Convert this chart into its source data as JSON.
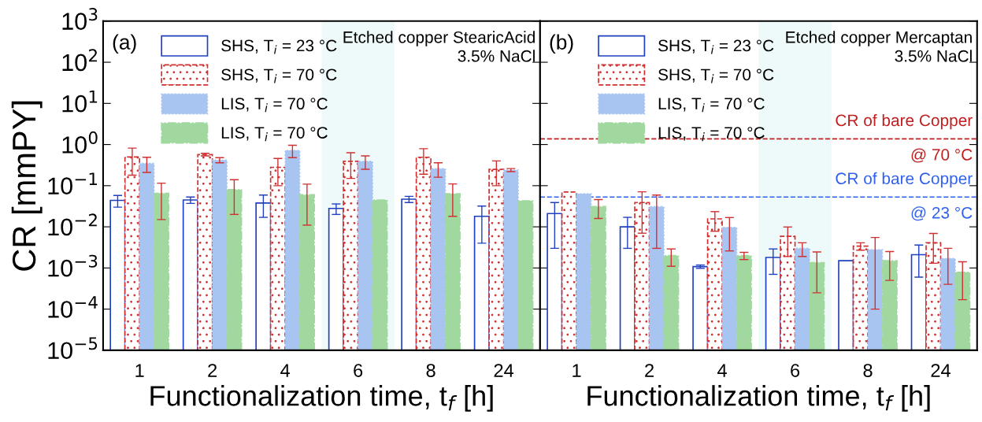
{
  "chart_data": [
    {
      "type": "bar",
      "ylabel": "CR [mmPY]",
      "xlabel": "Functionalization time, t$_{f}$ [h]",
      "log": "y",
      "legend": "top left",
      "grid": false,
      "categories": [
        "1",
        "2",
        "4",
        "6",
        "8",
        "24"
      ],
      "ylim": [
        1e-05,
        1000
      ],
      "yticks": [
        {
          "value": 1e-05,
          "label": "10$^{−5}$"
        },
        {
          "value": 0.0001,
          "label": "10$^{−4}$"
        },
        {
          "value": 0.001,
          "label": "10$^{−3}$"
        },
        {
          "value": 0.01,
          "label": "10$^{−2}$"
        },
        {
          "value": 0.1,
          "label": "10$^{−1}$"
        },
        {
          "value": 1,
          "label": "10$^{0}$"
        },
        {
          "value": 10,
          "label": "10$^{1}$"
        },
        {
          "value": 100,
          "label": "10$^{2}$"
        },
        {
          "value": 1000,
          "label": "10$^{3}$"
        }
      ],
      "annotations": [
        "(a)",
        "Etched copper StearicAcid\n3.5% NaCl"
      ],
      "bands": [
        {
          "axis": "x",
          "from": "6",
          "to": "6",
          "color": "#eefafa"
        }
      ],
      "series": [
        {
          "name": "SHS, T$_{i}$ = 23 °C",
          "color": "#2040c0",
          "values": [
            0.044,
            0.045,
            0.038,
            0.028,
            0.047,
            0.018
          ],
          "errors": [
            0.014,
            0.008,
            0.021,
            0.008,
            0.008,
            0.014
          ]
        },
        {
          "name": "SHS, T$_{i}$ = 70 °C",
          "color": "#d03030",
          "values": [
            0.5,
            0.57,
            0.28,
            0.39,
            0.49,
            0.25
          ],
          "errors": [
            0.32,
            0.04,
            0.18,
            0.24,
            0.3,
            0.15
          ]
        },
        {
          "name": "LIS, T$_{i}$ = 70 °C",
          "color": "#a8c4f0",
          "values": [
            0.35,
            0.42,
            0.72,
            0.39,
            0.26,
            0.24
          ],
          "errors": [
            0.14,
            0.06,
            0.24,
            0.14,
            0.1,
            0.02
          ]
        },
        {
          "name": "LIS, T$_{i}$ = 70 °C",
          "color": "#a0d8a0",
          "values": [
            0.065,
            0.08,
            0.06,
            0.045,
            0.064,
            0.043
          ],
          "errors": [
            0.05,
            0.06,
            0.049,
            null,
            0.046,
            null
          ]
        }
      ]
    },
    {
      "type": "bar",
      "xlabel": "Functionalization time, t$_{f}$ [h]",
      "log": "y",
      "legend": "top left",
      "grid": false,
      "tick_labels": "x",
      "categories": [
        "1",
        "2",
        "4",
        "6",
        "8",
        "24"
      ],
      "ylim": [
        1e-05,
        1000
      ],
      "yticks": [
        {
          "value": 1e-05,
          "label": null
        },
        {
          "value": 0.0001,
          "label": null
        },
        {
          "value": 0.001,
          "label": null
        },
        {
          "value": 0.01,
          "label": null
        },
        {
          "value": 0.1,
          "label": null
        },
        {
          "value": 1,
          "label": null
        },
        {
          "value": 10,
          "label": null
        },
        {
          "value": 100,
          "label": null
        },
        {
          "value": 1000,
          "label": null
        }
      ],
      "annotations": [
        "(b)",
        "Etched copper Mercaptan\n3.5% NaCl"
      ],
      "bands": [
        {
          "axis": "x",
          "from": "6",
          "to": "6",
          "color": "#eefafa"
        }
      ],
      "ref_lines": [
        {
          "axis": "y",
          "value": 1.37,
          "label": "CR of bare Copper\n@ 70 °C",
          "color": "#c02020",
          "line_style": "dashed"
        },
        {
          "axis": "y",
          "value": 0.053,
          "label": "CR of bare Copper\n@ 23 °C",
          "color": "#3060f0",
          "line_style": "dashed"
        }
      ],
      "series": [
        {
          "name": "SHS, T$_{i}$ = 23 °C",
          "color": "#2040c0",
          "values": [
            0.021,
            0.01,
            0.00108,
            0.0018,
            0.0015,
            0.0021
          ],
          "errors": [
            0.018,
            0.007,
            0.0001,
            0.0011,
            null,
            0.0015
          ]
        },
        {
          "name": "SHS, T$_{i}$ = 70 °C",
          "color": "#d03030",
          "values": [
            0.07,
            0.039,
            0.0156,
            0.0059,
            0.0034,
            0.0041
          ],
          "errors": [
            null,
            0.032,
            0.0078,
            0.004,
            0.0007,
            0.0028
          ]
        },
        {
          "name": "LIS, T$_{i}$ = 70 °C",
          "color": "#a8c4f0",
          "values": [
            0.064,
            0.031,
            0.0097,
            0.003,
            0.0028,
            0.0017
          ],
          "errors": [
            null,
            0.028,
            0.0071,
            0.0011,
            0.0027,
            0.0013
          ]
        },
        {
          "name": "LIS, T$_{i}$ = 70 °C",
          "color": "#a0d8a0",
          "values": [
            0.031,
            0.002,
            0.002,
            0.00135,
            0.0015,
            0.00079
          ],
          "errors": [
            0.015,
            0.0009,
            0.0004,
            0.0011,
            0.001,
            0.00062
          ]
        }
      ]
    }
  ]
}
